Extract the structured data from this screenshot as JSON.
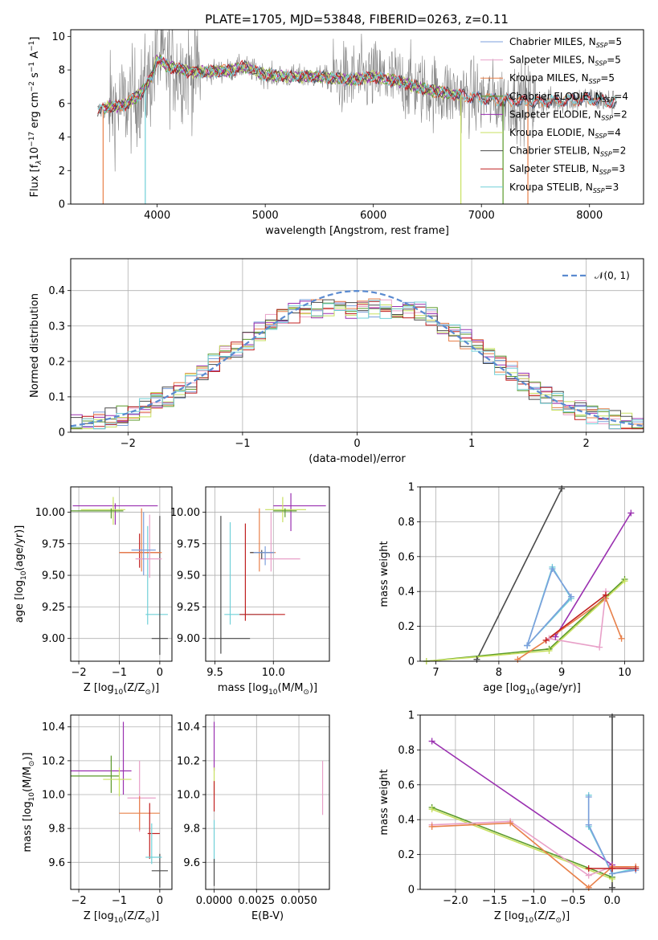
{
  "title": "PLATE=1705, MJD=53848, FIBERID=0263, z=0.11",
  "colors": {
    "gray": "#808080",
    "Chabrier MILES": "#7b9fdc",
    "Salpeter MILES": "#e8a0c8",
    "Kroupa MILES": "#e8804a",
    "Chabrier ELODIE": "#5a9a2a",
    "Salpeter ELODIE": "#9a30b0",
    "Kroupa ELODIE": "#c8e060",
    "Chabrier STELIB": "#4a4a4a",
    "Salpeter STELIB": "#c02020",
    "Kroupa STELIB": "#70d0d8",
    "normal": "#5a8ad0"
  },
  "chart_data": [
    {
      "type": "line",
      "id": "spectrum",
      "xlabel": "wavelength [Angstrom, rest frame]",
      "ylabel_parts": {
        "a": "Flux [f",
        "b": "λ",
        "c": "10",
        "d": "−17",
        "e": " erg cm",
        "f": "−2",
        "g": " s",
        "h": "−1",
        "i": " A",
        "j": "−1",
        "k": "]"
      },
      "xlim": [
        3200,
        8500
      ],
      "ylim": [
        0,
        10.4
      ],
      "xticks": [
        4000,
        5000,
        6000,
        7000,
        8000
      ],
      "yticks": [
        0,
        2,
        4,
        6,
        8,
        10
      ],
      "legend_position": "right",
      "legend": [
        {
          "prefix": "Chabrier MILES, N",
          "sub": "SSP",
          "suffix": "=5"
        },
        {
          "prefix": "Salpeter MILES, N",
          "sub": "SSP",
          "suffix": "=5"
        },
        {
          "prefix": "Kroupa MILES, N",
          "sub": "SSP",
          "suffix": "=5"
        },
        {
          "prefix": "Chabrier ELODIE, N",
          "sub": "SSP",
          "suffix": "=4"
        },
        {
          "prefix": "Salpeter ELODIE, N",
          "sub": "SSP",
          "suffix": "=2"
        },
        {
          "prefix": "Kroupa ELODIE, N",
          "sub": "SSP",
          "suffix": "=4"
        },
        {
          "prefix": "Chabrier STELIB, N",
          "sub": "SSP",
          "suffix": "=2"
        },
        {
          "prefix": "Salpeter STELIB, N",
          "sub": "SSP",
          "suffix": "=3"
        },
        {
          "prefix": "Kroupa STELIB, N",
          "sub": "SSP",
          "suffix": "=3"
        }
      ],
      "continuum": {
        "x": [
          3450,
          3550,
          3700,
          3850,
          3950,
          4000,
          4100,
          4300,
          4500,
          4700,
          4800,
          5000,
          5200,
          5500,
          5800,
          6000,
          6300,
          6500,
          6800,
          7000,
          7200,
          7500,
          7800,
          8000,
          8200
        ],
        "y": [
          5.5,
          5.8,
          5.9,
          6.6,
          7.6,
          8.7,
          8.2,
          7.9,
          7.9,
          8.0,
          8.2,
          7.7,
          7.6,
          7.6,
          7.4,
          7.6,
          7.2,
          6.8,
          6.5,
          6.3,
          6.2,
          6.1,
          6.2,
          6.3,
          6.1
        ]
      },
      "dropouts": [
        {
          "x": 3500,
          "to": 0,
          "series": "Kroupa MILES"
        },
        {
          "x": 3890,
          "to": 0,
          "series": "Kroupa STELIB"
        },
        {
          "x": 6810,
          "to": 0,
          "series": "Kroupa ELODIE"
        },
        {
          "x": 7200,
          "to": 0,
          "series": "Chabrier ELODIE"
        },
        {
          "x": 7430,
          "to": 0,
          "series": "Kroupa MILES"
        }
      ]
    },
    {
      "type": "line",
      "id": "residuals",
      "xlabel": "(data-model)/error",
      "ylabel": "Normed distribution",
      "xlim": [
        -2.5,
        2.5
      ],
      "ylim": [
        0,
        0.49
      ],
      "xticks": [
        -2,
        -1,
        0,
        1,
        2
      ],
      "yticks": [
        0.0,
        0.1,
        0.2,
        0.3,
        0.4
      ],
      "grid": true,
      "legend_position": "top-right",
      "legend_label": "𝒩(0, 1)"
    },
    {
      "type": "scatter",
      "id": "age-vs-z",
      "xlabel_parts": {
        "a": "Z [log",
        "b": "10",
        "c": "(Z/Z",
        "d": "⊙",
        "e": ")]"
      },
      "ylabel_parts": {
        "a": "age  [log",
        "b": "10",
        "c": "(age/yr)]"
      },
      "xlim": [
        -2.2,
        0.3
      ],
      "ylim": [
        8.82,
        10.2
      ],
      "xticks": [
        -2,
        -1,
        0
      ],
      "yticks": [
        9.0,
        9.25,
        9.5,
        9.75,
        10.0
      ],
      "ytick_labels": [
        "9.00",
        "9.25",
        "9.50",
        "9.75",
        "10.00"
      ],
      "grid": true,
      "points": [
        {
          "series": "Salpeter ELODIE",
          "x": -1.1,
          "xerr": [
            1.05,
            1.05
          ],
          "y": 10.05,
          "yerr": [
            0.15,
            0.02
          ]
        },
        {
          "series": "Kroupa ELODIE",
          "x": -1.15,
          "xerr": [
            0.8,
            0.3
          ],
          "y": 10.02,
          "yerr": [
            0.12,
            0.1
          ]
        },
        {
          "series": "Chabrier ELODIE",
          "x": -1.2,
          "xerr": [
            1.0,
            0.3
          ],
          "y": 10.01,
          "yerr": [
            0.06,
            0.02
          ]
        },
        {
          "series": "Kroupa STELIB",
          "x": -0.3,
          "xerr": [
            0.05,
            0.5
          ],
          "y": 9.19,
          "yerr": [
            0.08,
            0.7
          ]
        },
        {
          "series": "Chabrier STELIB",
          "x": 0.0,
          "xerr": [
            0.2,
            0.2
          ],
          "y": 9.0,
          "yerr": [
            0.13,
            0.97
          ]
        },
        {
          "series": "Salpeter STELIB",
          "x": -0.5,
          "xerr": [
            0.5,
            0.5
          ],
          "y": 9.68,
          "yerr": [
            0.12,
            0.15
          ]
        },
        {
          "series": "Kroupa MILES",
          "x": -0.45,
          "xerr": [
            0.55,
            0.5
          ],
          "y": 9.68,
          "yerr": [
            0.15,
            0.35
          ]
        },
        {
          "series": "Salpeter MILES",
          "x": -0.25,
          "xerr": [
            0.35,
            0.3
          ],
          "y": 9.63,
          "yerr": [
            0.15,
            0.35
          ]
        },
        {
          "series": "Chabrier MILES",
          "x": -0.4,
          "xerr": [
            0.3,
            0.3
          ],
          "y": 9.7,
          "yerr": [
            0.2,
            0.3
          ]
        }
      ]
    },
    {
      "type": "scatter",
      "id": "age-vs-mass",
      "xlabel_parts": {
        "a": "mass [log",
        "b": "10",
        "c": "(M/M",
        "d": "⊙",
        "e": ")]"
      },
      "xlim": [
        9.42,
        10.48
      ],
      "ylim": [
        8.82,
        10.2
      ],
      "xticks": [
        9.5,
        10.0
      ],
      "xtick_labels": [
        "9.5",
        "10.0"
      ],
      "yticks": [
        9.0,
        9.25,
        9.5,
        9.75,
        10.0
      ],
      "ytick_labels": [
        "9.00",
        "9.25",
        "9.50",
        "9.75",
        "10.00"
      ],
      "grid": true,
      "points": [
        {
          "series": "Salpeter ELODIE",
          "x": 10.15,
          "xerr": [
            0.15,
            0.3
          ],
          "y": 10.05,
          "yerr": [
            0.2,
            0.1
          ]
        },
        {
          "series": "Kroupa ELODIE",
          "x": 10.08,
          "xerr": [
            0.15,
            0.2
          ],
          "y": 10.02,
          "yerr": [
            0.1,
            0.1
          ]
        },
        {
          "series": "Chabrier ELODIE",
          "x": 10.1,
          "xerr": [
            0.1,
            0.1
          ],
          "y": 10.01,
          "yerr": [
            0.05,
            0.02
          ]
        },
        {
          "series": "Chabrier STELIB",
          "x": 9.55,
          "xerr": [
            0.1,
            0.25
          ],
          "y": 9.0,
          "yerr": [
            0.12,
            0.97
          ]
        },
        {
          "series": "Kroupa STELIB",
          "x": 9.63,
          "xerr": [
            0.05,
            0.35
          ],
          "y": 9.19,
          "yerr": [
            0.08,
            0.73
          ]
        },
        {
          "series": "Salpeter STELIB",
          "x": 9.76,
          "xerr": [
            0.05,
            0.34
          ],
          "y": 9.19,
          "yerr": [
            0.05,
            0.72
          ]
        },
        {
          "series": "Kroupa MILES",
          "x": 9.88,
          "xerr": [
            0.08,
            0.14
          ],
          "y": 9.68,
          "yerr": [
            0.15,
            0.35
          ]
        },
        {
          "series": "Salpeter MILES",
          "x": 9.98,
          "xerr": [
            0.1,
            0.25
          ],
          "y": 9.63,
          "yerr": [
            0.1,
            0.37
          ]
        },
        {
          "series": "Chabrier STELIB",
          "x": 9.9,
          "xerr": [
            0.1,
            0.1
          ],
          "y": 9.68,
          "yerr": [
            0.05,
            0.02
          ]
        },
        {
          "series": "Chabrier MILES",
          "x": 9.93,
          "xerr": [
            0.1,
            0.08
          ],
          "y": 9.68,
          "yerr": [
            0.1,
            0.05
          ]
        }
      ]
    },
    {
      "type": "line",
      "id": "weight-vs-age",
      "xlabel_parts": {
        "a": "age  [log",
        "b": "10",
        "c": "(age/yr)]"
      },
      "ylabel": "mass weight",
      "xlim": [
        6.75,
        10.3
      ],
      "ylim": [
        0,
        1.0
      ],
      "xticks": [
        7,
        8,
        9,
        10
      ],
      "yticks": [
        0.0,
        0.2,
        0.4,
        0.6,
        0.8,
        1.0
      ],
      "grid": true,
      "series": [
        {
          "name": "Chabrier STELIB",
          "x": [
            7.65,
            9.0
          ],
          "y": [
            0.01,
            0.99
          ]
        },
        {
          "name": "Salpeter ELODIE",
          "x": [
            8.9,
            10.1
          ],
          "y": [
            0.14,
            0.85
          ]
        },
        {
          "name": "Kroupa STELIB",
          "x": [
            8.45,
            8.85,
            9.15,
            8.45
          ],
          "y": [
            0.09,
            0.54,
            0.36,
            0.09
          ]
        },
        {
          "name": "Chabrier MILES",
          "x": [
            8.45,
            8.85,
            9.15,
            8.45
          ],
          "y": [
            0.09,
            0.53,
            0.37,
            0.09
          ]
        },
        {
          "name": "Chabrier ELODIE",
          "x": [
            6.85,
            8.8,
            10.0
          ],
          "y": [
            0.0,
            0.07,
            0.47
          ]
        },
        {
          "name": "Kroupa ELODIE",
          "x": [
            6.85,
            8.8,
            10.0
          ],
          "y": [
            0.0,
            0.06,
            0.46
          ]
        },
        {
          "name": "Kroupa MILES",
          "x": [
            8.3,
            8.8,
            9.7,
            9.95
          ],
          "y": [
            0.01,
            0.13,
            0.36,
            0.13
          ]
        },
        {
          "name": "Salpeter MILES",
          "x": [
            8.8,
            9.6,
            9.7
          ],
          "y": [
            0.13,
            0.08,
            0.4
          ]
        },
        {
          "name": "Salpeter STELIB",
          "x": [
            8.75,
            9.7
          ],
          "y": [
            0.12,
            0.38
          ]
        }
      ]
    },
    {
      "type": "scatter",
      "id": "mass-vs-z",
      "xlabel_parts": {
        "a": "Z [log",
        "b": "10",
        "c": "(Z/Z",
        "d": "⊙",
        "e": ")]"
      },
      "ylabel_parts": {
        "a": "mass [log",
        "b": "10",
        "c": "(M/M",
        "d": "⊙",
        "e": ")]"
      },
      "xlim": [
        -2.2,
        0.3
      ],
      "ylim": [
        9.44,
        10.47
      ],
      "xticks": [
        -2,
        -1,
        0
      ],
      "yticks": [
        9.6,
        9.8,
        10.0,
        10.2,
        10.4
      ],
      "ytick_labels": [
        "9.6",
        "9.8",
        "10.0",
        "10.2",
        "10.4"
      ],
      "grid": true,
      "points": [
        {
          "series": "Salpeter ELODIE",
          "x": -0.9,
          "xerr": [
            1.4,
            0.2
          ],
          "y": 10.14,
          "yerr": [
            0.14,
            0.29
          ]
        },
        {
          "series": "Chabrier ELODIE",
          "x": -1.2,
          "xerr": [
            1.0,
            0.2
          ],
          "y": 10.11,
          "yerr": [
            0.1,
            0.12
          ]
        },
        {
          "series": "Kroupa ELODIE",
          "x": -1.0,
          "xerr": [
            0.4,
            0.3
          ],
          "y": 10.09,
          "yerr": [
            0.1,
            0.07
          ]
        },
        {
          "series": "Salpeter MILES",
          "x": -0.5,
          "xerr": [
            0.3,
            0.4
          ],
          "y": 9.98,
          "yerr": [
            0.2,
            0.22
          ]
        },
        {
          "series": "Kroupa MILES",
          "x": -0.5,
          "xerr": [
            0.5,
            0.5
          ],
          "y": 9.89,
          "yerr": [
            0.1,
            0.1
          ]
        },
        {
          "series": "Salpeter STELIB",
          "x": -0.25,
          "xerr": [
            0.05,
            0.25
          ],
          "y": 9.77,
          "yerr": [
            0.15,
            0.18
          ]
        },
        {
          "series": "Chabrier STELIB",
          "x": 0.0,
          "xerr": [
            0.2,
            0.2
          ],
          "y": 9.55,
          "yerr": [
            0.1,
            0.1
          ]
        },
        {
          "series": "Kroupa STELIB",
          "x": -0.2,
          "xerr": [
            0.15,
            0.25
          ],
          "y": 9.63,
          "yerr": [
            0.04,
            0.2
          ]
        }
      ]
    },
    {
      "type": "scatter",
      "id": "mass-vs-ebv",
      "xlabel": "E(B-V)",
      "xlim": [
        -0.0005,
        0.0068
      ],
      "ylim": [
        9.44,
        10.47
      ],
      "xticks": [
        0.0,
        0.0025,
        0.005
      ],
      "xtick_labels": [
        "0.0000",
        "0.0025",
        "0.0050"
      ],
      "yticks": [
        9.6,
        9.8,
        10.0,
        10.2,
        10.4
      ],
      "ytick_labels": [
        "9.6",
        "9.8",
        "10.0",
        "10.2",
        "10.4"
      ],
      "grid": true,
      "points": [
        {
          "series": "Salpeter ELODIE",
          "x": 0.0,
          "y0": 10.14,
          "y1": 10.43
        },
        {
          "series": "Kroupa ELODIE",
          "x": 0.0,
          "y0": 10.0,
          "y1": 10.16
        },
        {
          "series": "Salpeter STELIB",
          "x": 0.0,
          "y0": 9.9,
          "y1": 10.08
        },
        {
          "series": "Kroupa STELIB",
          "x": 0.0,
          "y0": 9.6,
          "y1": 9.85
        },
        {
          "series": "Chabrier STELIB",
          "x": 0.0,
          "y0": 9.46,
          "y1": 9.62
        },
        {
          "series": "Salpeter MILES",
          "x": 0.0064,
          "y0": 9.88,
          "y1": 10.2
        }
      ]
    },
    {
      "type": "line",
      "id": "weight-vs-z",
      "xlabel_parts": {
        "a": "Z [log",
        "b": "10",
        "c": "(Z/Z",
        "d": "⊙",
        "e": ")]"
      },
      "ylabel": "mass weight",
      "xlim": [
        -2.45,
        0.4
      ],
      "ylim": [
        0,
        1.0
      ],
      "xticks": [
        -2.0,
        -1.5,
        -1.0,
        -0.5,
        0.0
      ],
      "xtick_labels": [
        "−2.0",
        "−1.5",
        "−1.0",
        "−0.5",
        "0.0"
      ],
      "yticks": [
        0.0,
        0.2,
        0.4,
        0.6,
        0.8,
        1.0
      ],
      "grid": true,
      "series": [
        {
          "name": "Salpeter ELODIE",
          "x": [
            -2.3,
            0.0
          ],
          "y": [
            0.85,
            0.14
          ]
        },
        {
          "name": "Chabrier ELODIE",
          "x": [
            -2.3,
            0.0
          ],
          "y": [
            0.47,
            0.07
          ]
        },
        {
          "name": "Kroupa ELODIE",
          "x": [
            -2.3,
            0.0
          ],
          "y": [
            0.46,
            0.06
          ]
        },
        {
          "name": "Salpeter MILES",
          "x": [
            -2.3,
            -1.3,
            -0.3,
            0.0,
            0.3
          ],
          "y": [
            0.37,
            0.39,
            0.08,
            0.13,
            0.12
          ]
        },
        {
          "name": "Kroupa MILES",
          "x": [
            -2.3,
            -1.3,
            -0.3,
            0.0,
            0.3
          ],
          "y": [
            0.36,
            0.38,
            0.01,
            0.13,
            0.13
          ]
        },
        {
          "name": "Kroupa STELIB",
          "x": [
            -0.3,
            -0.3,
            0.0,
            0.3
          ],
          "y": [
            0.54,
            0.36,
            0.09,
            0.12
          ]
        },
        {
          "name": "Chabrier MILES",
          "x": [
            -0.3,
            -0.3,
            0.0,
            0.3
          ],
          "y": [
            0.53,
            0.37,
            0.09,
            0.11
          ]
        },
        {
          "name": "Chabrier STELIB",
          "x": [
            0.0,
            0.0
          ],
          "y": [
            0.01,
            0.99
          ]
        },
        {
          "name": "Salpeter STELIB",
          "x": [
            -0.3,
            0.0,
            0.3
          ],
          "y": [
            0.12,
            0.12,
            0.12
          ]
        }
      ]
    }
  ]
}
